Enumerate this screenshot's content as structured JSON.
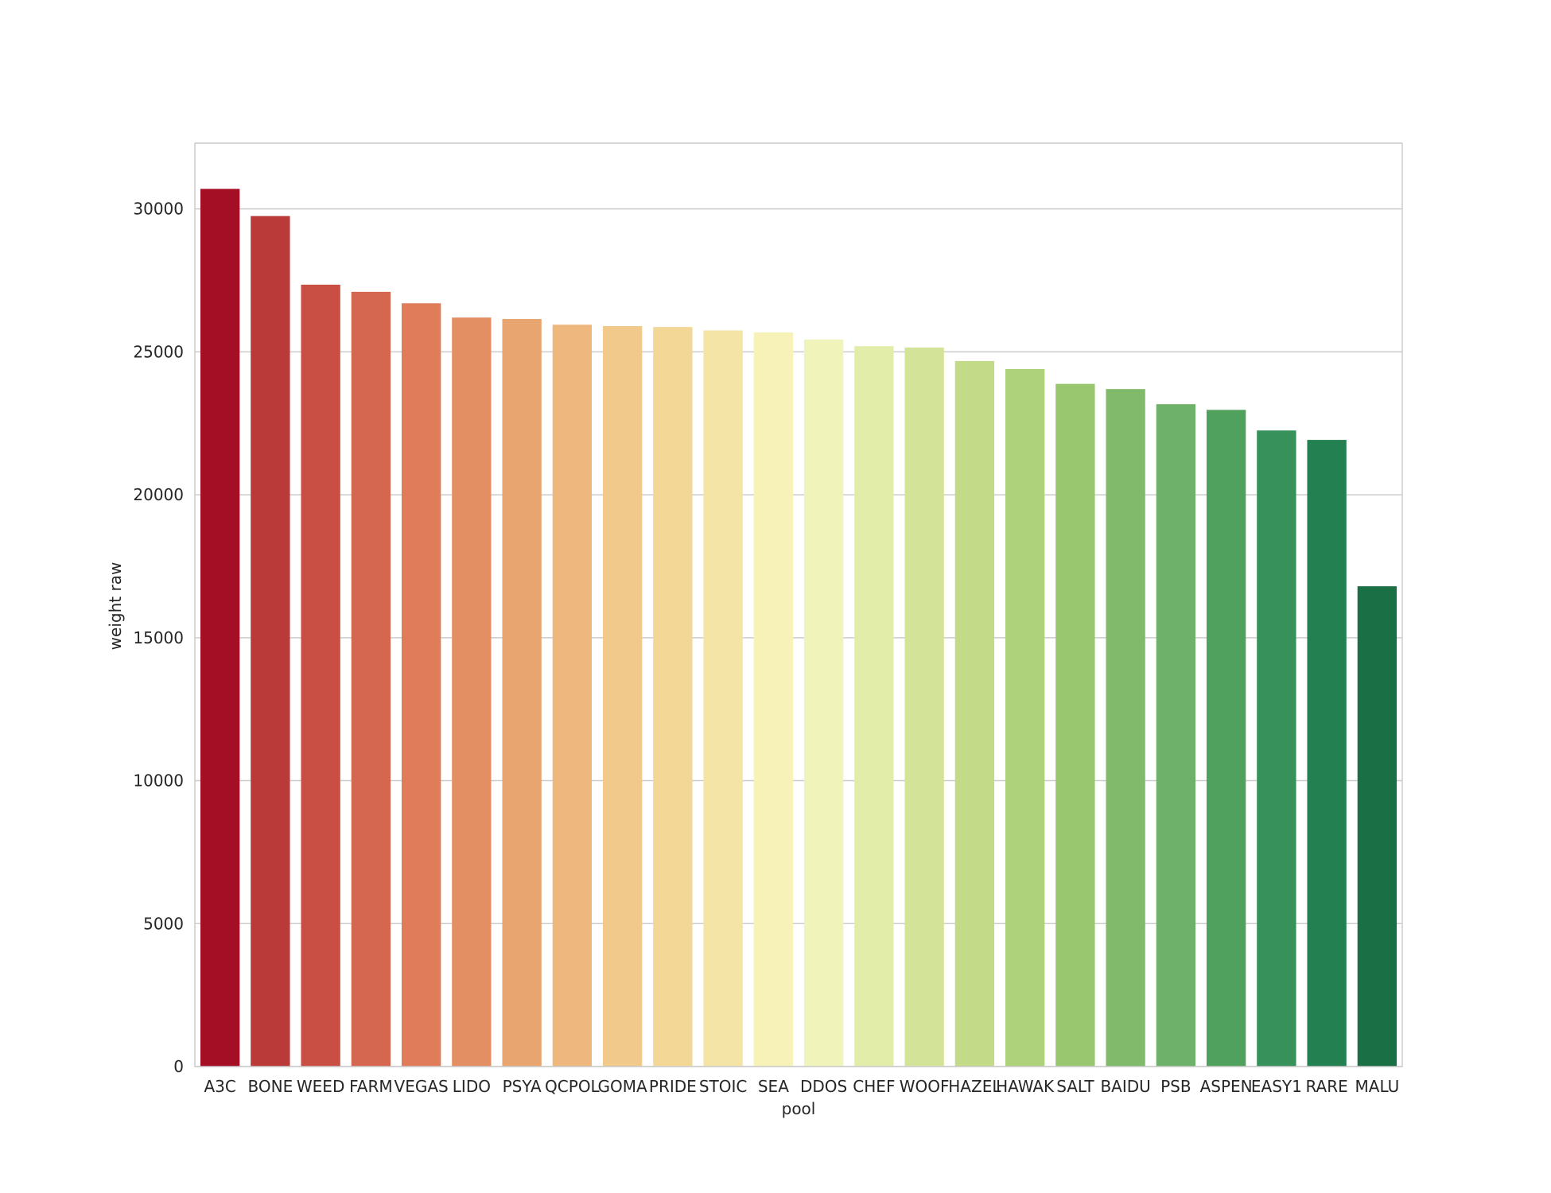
{
  "chart_data": {
    "type": "bar",
    "title": "",
    "xlabel": "pool",
    "ylabel": "weight raw",
    "ylim": [
      0,
      32300
    ],
    "yticks": [
      0,
      5000,
      10000,
      15000,
      20000,
      25000,
      30000
    ],
    "grid": "horizontal",
    "legend": "none",
    "categories": [
      "A3C",
      "BONE",
      "WEED",
      "FARM",
      "VEGAS",
      "LIDO",
      "PSYA",
      "QCPOL",
      "GOMA",
      "PRIDE",
      "STOIC",
      "SEA",
      "DDOS",
      "CHEF",
      "WOOF",
      "HAZEL",
      "HAWAK",
      "SALT",
      "BAIDU",
      "PSB",
      "ASPEN",
      "EASY1",
      "RARE",
      "MALU"
    ],
    "values": [
      30700,
      29750,
      27350,
      27100,
      26700,
      26200,
      26150,
      25950,
      25900,
      25870,
      25750,
      25680,
      25430,
      25200,
      25150,
      24680,
      24400,
      23880,
      23700,
      23170,
      22970,
      22250,
      21920,
      16800
    ],
    "colors": [
      "#a50f25",
      "#ba3a3a",
      "#c94f45",
      "#d5664f",
      "#e07c5a",
      "#e48f63",
      "#e9a56f",
      "#edb77d",
      "#f0c98b",
      "#f2d797",
      "#f4e4a6",
      "#f6f2b8",
      "#f0f4ba",
      "#e3edaa",
      "#d3e398",
      "#c3da88",
      "#aed27b",
      "#98c76f",
      "#82ba6c",
      "#6db16b",
      "#51a15e",
      "#36915a",
      "#238050",
      "#1a7044"
    ]
  }
}
